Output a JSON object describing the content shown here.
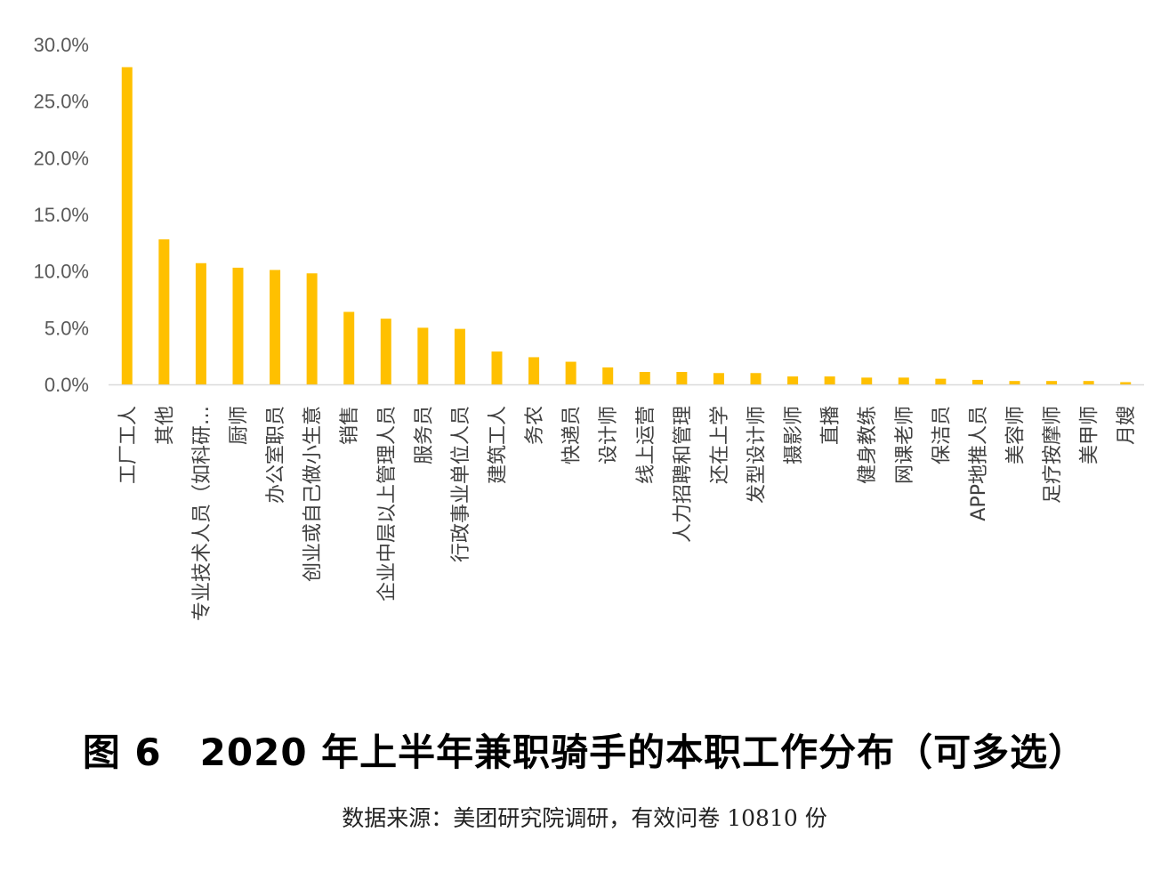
{
  "chart_data": {
    "type": "bar",
    "categories": [
      "工厂工人",
      "其他",
      "专业技术人员（如科研…",
      "厨师",
      "办公室职员",
      "创业或自己做小生意",
      "销售",
      "企业中层以上管理人员",
      "服务员",
      "行政事业单位人员",
      "建筑工人",
      "务农",
      "快递员",
      "设计师",
      "线上运营",
      "人力招聘和管理",
      "还在上学",
      "发型设计师",
      "摄影师",
      "直播",
      "健身教练",
      "网课老师",
      "保洁员",
      "APP地推人员",
      "美容师",
      "足疗按摩师",
      "美甲师",
      "月嫂"
    ],
    "values": [
      28.0,
      12.8,
      10.7,
      10.3,
      10.1,
      9.8,
      6.4,
      5.8,
      5.0,
      4.9,
      2.9,
      2.4,
      2.0,
      1.5,
      1.1,
      1.1,
      1.0,
      1.0,
      0.7,
      0.7,
      0.6,
      0.6,
      0.5,
      0.4,
      0.3,
      0.3,
      0.3,
      0.2
    ],
    "yticks": [
      "0.0%",
      "5.0%",
      "10.0%",
      "15.0%",
      "20.0%",
      "25.0%",
      "30.0%"
    ],
    "ylim": [
      0,
      30
    ],
    "bar_color": "#FFC000",
    "axis_color": "#D9D9D9",
    "grid": false,
    "title": "图 6　2020 年上半年兼职骑手的本职工作分布（可多选）",
    "source": "数据来源：美团研究院调研，有效问卷 10810 份"
  }
}
